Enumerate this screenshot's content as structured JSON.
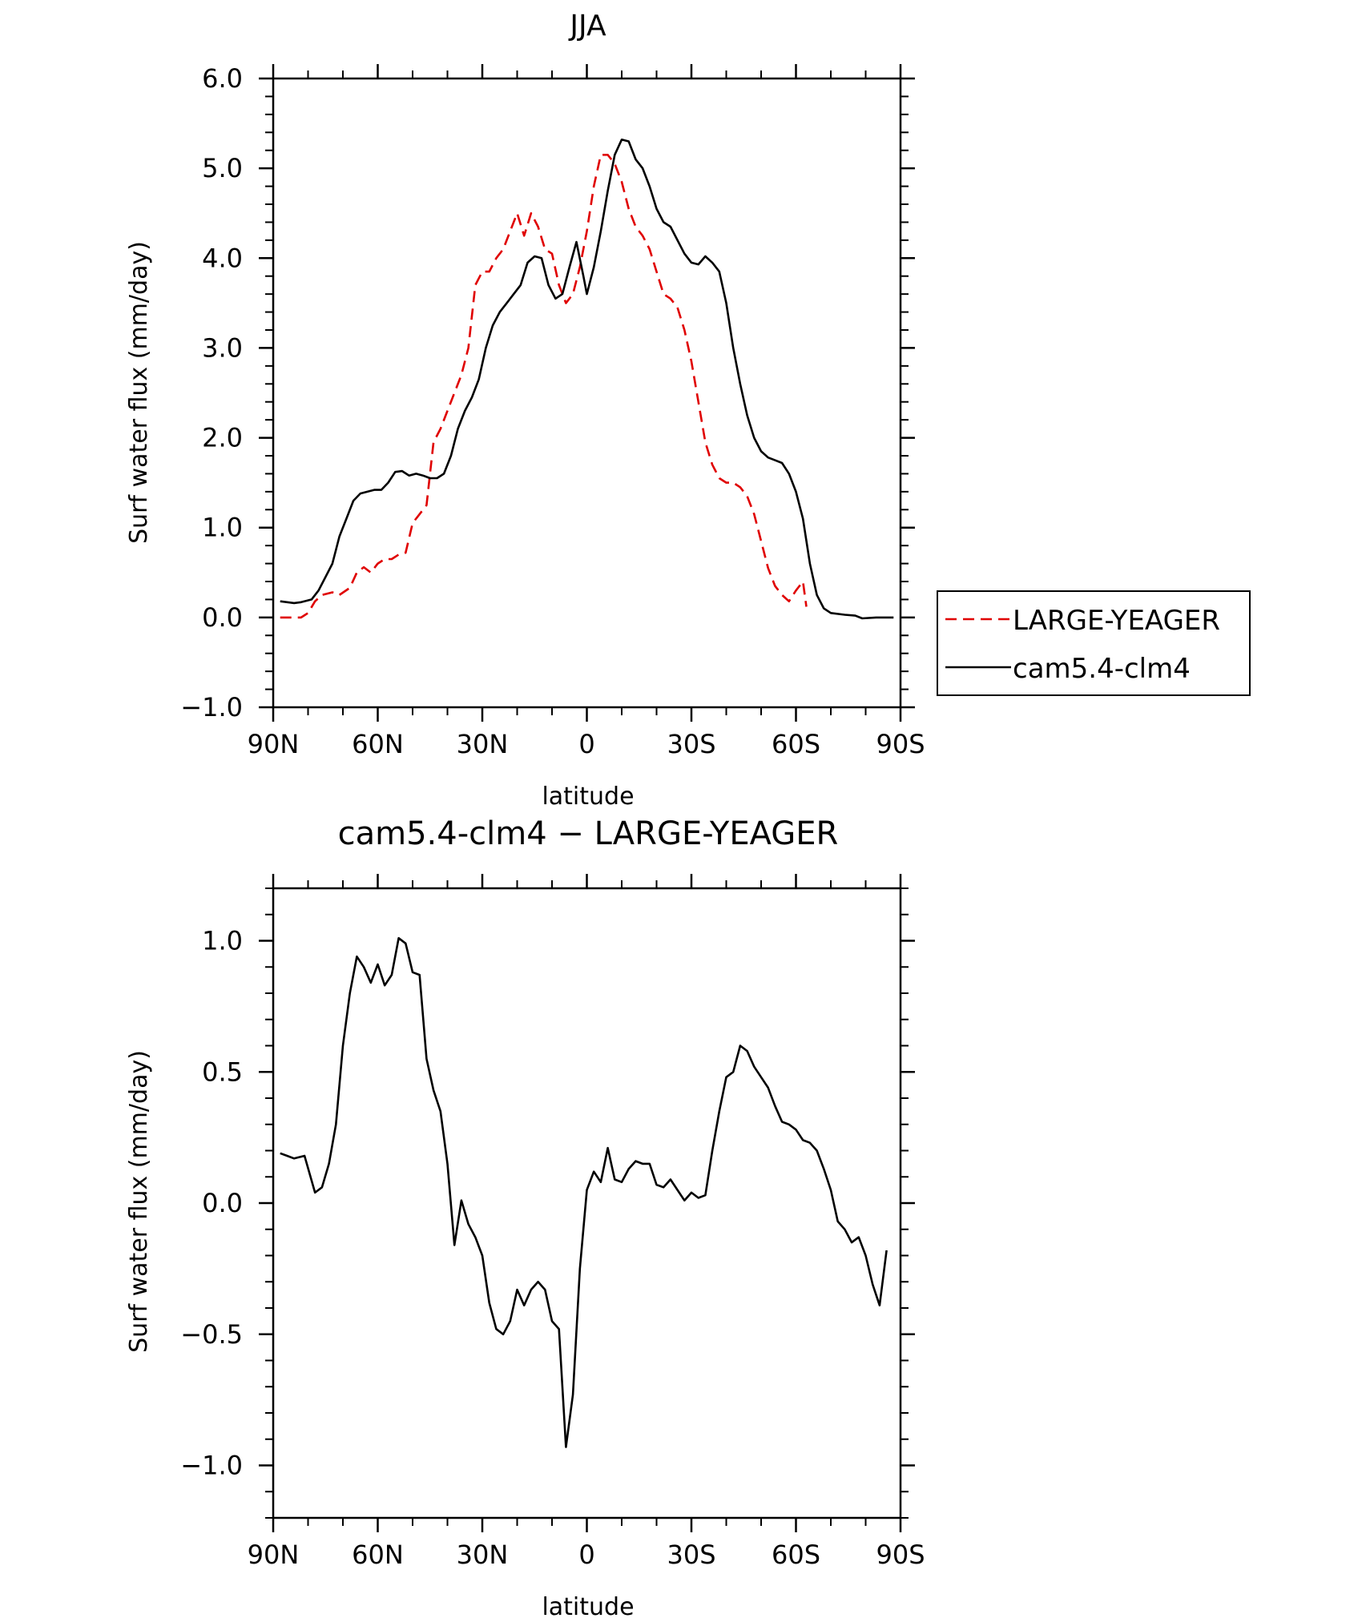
{
  "chart_data": [
    {
      "type": "line",
      "title": "JJA",
      "xlabel": "latitude",
      "ylabel": "Surf water flux (mm/day)",
      "xlim": [
        90,
        -90
      ],
      "ylim": [
        -1.0,
        6.0
      ],
      "xticks": [
        90,
        60,
        30,
        0,
        -30,
        -60,
        -90
      ],
      "xtick_labels": [
        "90N",
        "60N",
        "30N",
        "0",
        "30S",
        "60S",
        "90S"
      ],
      "yticks": [
        -1.0,
        0.0,
        1.0,
        2.0,
        3.0,
        4.0,
        5.0,
        6.0
      ],
      "ytick_labels": [
        "−1.0",
        "0.0",
        "1.0",
        "2.0",
        "3.0",
        "4.0",
        "5.0",
        "6.0"
      ],
      "grid": false,
      "legend": "right",
      "series": [
        {
          "name": "LARGE-YEAGER",
          "color": "#e00000",
          "dash": "dashed",
          "points": [
            [
              88,
              0.0
            ],
            [
              85,
              0.0
            ],
            [
              82,
              0.0
            ],
            [
              80,
              0.05
            ],
            [
              78,
              0.18
            ],
            [
              76,
              0.25
            ],
            [
              73,
              0.28
            ],
            [
              71,
              0.25
            ],
            [
              68,
              0.33
            ],
            [
              66,
              0.5
            ],
            [
              64,
              0.56
            ],
            [
              62,
              0.5
            ],
            [
              60,
              0.6
            ],
            [
              58,
              0.65
            ],
            [
              56,
              0.65
            ],
            [
              54,
              0.7
            ],
            [
              52,
              0.72
            ],
            [
              50,
              1.05
            ],
            [
              48,
              1.15
            ],
            [
              46,
              1.25
            ],
            [
              44,
              1.95
            ],
            [
              42,
              2.1
            ],
            [
              40,
              2.3
            ],
            [
              38,
              2.5
            ],
            [
              36,
              2.7
            ],
            [
              34,
              3.0
            ],
            [
              32,
              3.7
            ],
            [
              30,
              3.85
            ],
            [
              28,
              3.85
            ],
            [
              26,
              4.0
            ],
            [
              24,
              4.1
            ],
            [
              22,
              4.3
            ],
            [
              20,
              4.5
            ],
            [
              18,
              4.25
            ],
            [
              16,
              4.5
            ],
            [
              14,
              4.35
            ],
            [
              12,
              4.1
            ],
            [
              10,
              4.05
            ],
            [
              8,
              3.7
            ],
            [
              6,
              3.5
            ],
            [
              4,
              3.6
            ],
            [
              2,
              3.9
            ],
            [
              0,
              4.3
            ],
            [
              -2,
              4.8
            ],
            [
              -4,
              5.15
            ],
            [
              -6,
              5.15
            ],
            [
              -8,
              5.05
            ],
            [
              -10,
              4.85
            ],
            [
              -12,
              4.55
            ],
            [
              -14,
              4.35
            ],
            [
              -16,
              4.25
            ],
            [
              -18,
              4.1
            ],
            [
              -20,
              3.85
            ],
            [
              -22,
              3.6
            ],
            [
              -24,
              3.55
            ],
            [
              -26,
              3.45
            ],
            [
              -28,
              3.2
            ],
            [
              -30,
              2.85
            ],
            [
              -32,
              2.4
            ],
            [
              -34,
              1.95
            ],
            [
              -36,
              1.7
            ],
            [
              -38,
              1.55
            ],
            [
              -40,
              1.5
            ],
            [
              -42,
              1.5
            ],
            [
              -44,
              1.45
            ],
            [
              -46,
              1.35
            ],
            [
              -48,
              1.15
            ],
            [
              -50,
              0.85
            ],
            [
              -52,
              0.55
            ],
            [
              -54,
              0.35
            ],
            [
              -56,
              0.25
            ],
            [
              -58,
              0.18
            ],
            [
              -60,
              0.3
            ],
            [
              -62,
              0.4
            ],
            [
              -63,
              0.12
            ]
          ]
        },
        {
          "name": "cam5.4-clm4",
          "color": "#000000",
          "dash": "solid",
          "points": [
            [
              88,
              0.18
            ],
            [
              86,
              0.17
            ],
            [
              84,
              0.16
            ],
            [
              82,
              0.17
            ],
            [
              79,
              0.2
            ],
            [
              77,
              0.3
            ],
            [
              75,
              0.45
            ],
            [
              73,
              0.6
            ],
            [
              71,
              0.9
            ],
            [
              69,
              1.1
            ],
            [
              67,
              1.3
            ],
            [
              65,
              1.38
            ],
            [
              63,
              1.4
            ],
            [
              61,
              1.42
            ],
            [
              59,
              1.42
            ],
            [
              57,
              1.5
            ],
            [
              55,
              1.62
            ],
            [
              53,
              1.63
            ],
            [
              51,
              1.58
            ],
            [
              49,
              1.6
            ],
            [
              47,
              1.58
            ],
            [
              45,
              1.55
            ],
            [
              43,
              1.55
            ],
            [
              41,
              1.6
            ],
            [
              39,
              1.8
            ],
            [
              37,
              2.1
            ],
            [
              35,
              2.3
            ],
            [
              33,
              2.45
            ],
            [
              31,
              2.65
            ],
            [
              29,
              3.0
            ],
            [
              27,
              3.25
            ],
            [
              25,
              3.4
            ],
            [
              23,
              3.5
            ],
            [
              21,
              3.6
            ],
            [
              19,
              3.7
            ],
            [
              17,
              3.95
            ],
            [
              15,
              4.02
            ],
            [
              13,
              4.0
            ],
            [
              11,
              3.7
            ],
            [
              9,
              3.55
            ],
            [
              7,
              3.6
            ],
            [
              5,
              3.9
            ],
            [
              3,
              4.18
            ],
            [
              1,
              3.8
            ],
            [
              0,
              3.6
            ],
            [
              -2,
              3.9
            ],
            [
              -4,
              4.3
            ],
            [
              -6,
              4.75
            ],
            [
              -8,
              5.15
            ],
            [
              -10,
              5.32
            ],
            [
              -12,
              5.3
            ],
            [
              -14,
              5.1
            ],
            [
              -16,
              5.0
            ],
            [
              -18,
              4.8
            ],
            [
              -20,
              4.55
            ],
            [
              -22,
              4.4
            ],
            [
              -24,
              4.35
            ],
            [
              -26,
              4.2
            ],
            [
              -28,
              4.05
            ],
            [
              -30,
              3.95
            ],
            [
              -32,
              3.93
            ],
            [
              -34,
              4.02
            ],
            [
              -36,
              3.95
            ],
            [
              -38,
              3.85
            ],
            [
              -40,
              3.5
            ],
            [
              -42,
              3.0
            ],
            [
              -44,
              2.6
            ],
            [
              -46,
              2.25
            ],
            [
              -48,
              2.0
            ],
            [
              -50,
              1.85
            ],
            [
              -52,
              1.78
            ],
            [
              -54,
              1.75
            ],
            [
              -56,
              1.72
            ],
            [
              -58,
              1.6
            ],
            [
              -60,
              1.4
            ],
            [
              -62,
              1.1
            ],
            [
              -64,
              0.6
            ],
            [
              -66,
              0.25
            ],
            [
              -68,
              0.1
            ],
            [
              -70,
              0.05
            ],
            [
              -74,
              0.03
            ],
            [
              -77,
              0.02
            ],
            [
              -79,
              -0.01
            ],
            [
              -83,
              0.0
            ],
            [
              -88,
              0.0
            ]
          ]
        }
      ]
    },
    {
      "type": "line",
      "title": "cam5.4-clm4 − LARGE-YEAGER",
      "xlabel": "latitude",
      "ylabel": "Surf water flux (mm/day)",
      "xlim": [
        90,
        -90
      ],
      "ylim": [
        -1.2,
        1.2
      ],
      "xticks": [
        90,
        60,
        30,
        0,
        -30,
        -60,
        -90
      ],
      "xtick_labels": [
        "90N",
        "60N",
        "30N",
        "0",
        "30S",
        "60S",
        "90S"
      ],
      "yticks": [
        -1.0,
        -0.5,
        0.0,
        0.5,
        1.0
      ],
      "ytick_labels": [
        "−1.0",
        "−0.5",
        "0.0",
        "0.5",
        "1.0"
      ],
      "grid": false,
      "series": [
        {
          "color": "#000000",
          "dash": "solid",
          "points": [
            [
              88,
              0.19
            ],
            [
              86,
              0.18
            ],
            [
              84,
              0.17
            ],
            [
              81,
              0.18
            ],
            [
              78,
              0.04
            ],
            [
              76,
              0.06
            ],
            [
              74,
              0.15
            ],
            [
              72,
              0.3
            ],
            [
              70,
              0.6
            ],
            [
              68,
              0.8
            ],
            [
              66,
              0.94
            ],
            [
              64,
              0.9
            ],
            [
              62,
              0.84
            ],
            [
              60,
              0.91
            ],
            [
              58,
              0.83
            ],
            [
              56,
              0.87
            ],
            [
              54,
              1.01
            ],
            [
              52,
              0.99
            ],
            [
              50,
              0.88
            ],
            [
              48,
              0.87
            ],
            [
              46,
              0.55
            ],
            [
              44,
              0.43
            ],
            [
              42,
              0.35
            ],
            [
              40,
              0.15
            ],
            [
              38,
              -0.16
            ],
            [
              36,
              0.01
            ],
            [
              34,
              -0.08
            ],
            [
              32,
              -0.13
            ],
            [
              30,
              -0.2
            ],
            [
              28,
              -0.38
            ],
            [
              26,
              -0.48
            ],
            [
              24,
              -0.5
            ],
            [
              22,
              -0.45
            ],
            [
              20,
              -0.33
            ],
            [
              18,
              -0.39
            ],
            [
              16,
              -0.33
            ],
            [
              14,
              -0.3
            ],
            [
              12,
              -0.33
            ],
            [
              10,
              -0.45
            ],
            [
              8,
              -0.48
            ],
            [
              6,
              -0.93
            ],
            [
              4,
              -0.73
            ],
            [
              2,
              -0.25
            ],
            [
              0,
              0.05
            ],
            [
              -2,
              0.12
            ],
            [
              -4,
              0.08
            ],
            [
              -6,
              0.21
            ],
            [
              -8,
              0.09
            ],
            [
              -10,
              0.08
            ],
            [
              -12,
              0.13
            ],
            [
              -14,
              0.16
            ],
            [
              -16,
              0.15
            ],
            [
              -18,
              0.15
            ],
            [
              -20,
              0.07
            ],
            [
              -22,
              0.06
            ],
            [
              -24,
              0.09
            ],
            [
              -26,
              0.05
            ],
            [
              -28,
              0.01
            ],
            [
              -30,
              0.04
            ],
            [
              -32,
              0.02
            ],
            [
              -34,
              0.03
            ],
            [
              -36,
              0.2
            ],
            [
              -38,
              0.35
            ],
            [
              -40,
              0.48
            ],
            [
              -42,
              0.5
            ],
            [
              -44,
              0.6
            ],
            [
              -46,
              0.58
            ],
            [
              -48,
              0.52
            ],
            [
              -50,
              0.48
            ],
            [
              -52,
              0.44
            ],
            [
              -54,
              0.37
            ],
            [
              -56,
              0.31
            ],
            [
              -58,
              0.3
            ],
            [
              -60,
              0.28
            ],
            [
              -62,
              0.24
            ],
            [
              -64,
              0.23
            ],
            [
              -66,
              0.2
            ],
            [
              -68,
              0.13
            ],
            [
              -70,
              0.05
            ],
            [
              -72,
              -0.07
            ],
            [
              -74,
              -0.1
            ],
            [
              -76,
              -0.15
            ],
            [
              -78,
              -0.13
            ],
            [
              -80,
              -0.2
            ],
            [
              -82,
              -0.31
            ],
            [
              -84,
              -0.39
            ],
            [
              -86,
              -0.18
            ]
          ]
        }
      ]
    }
  ]
}
